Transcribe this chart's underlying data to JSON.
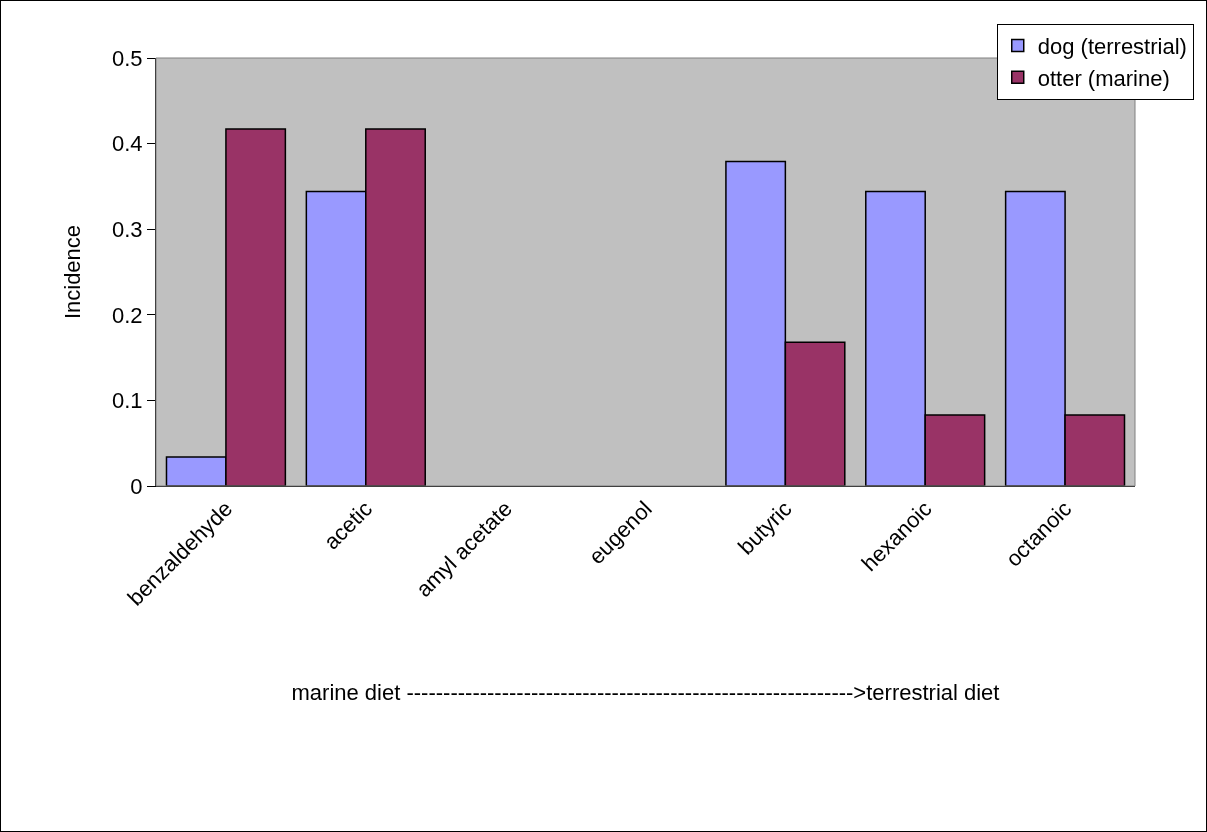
{
  "chart_data": {
    "type": "bar",
    "xlabel": "marine diet ------------------------------------------------------------->terrestrial diet",
    "ylabel": "Incidence",
    "categories": [
      "benzaldehyde",
      "acetic",
      "amyl acetate",
      "eugenol",
      "butyric",
      "hexanoic",
      "octanoic"
    ],
    "series": [
      {
        "name": "dog (terrestrial)",
        "color": "#9999ff",
        "values": [
          0.034,
          0.344,
          null,
          null,
          0.379,
          0.344,
          0.344
        ]
      },
      {
        "name": "otter (marine)",
        "color": "#993366",
        "values": [
          0.417,
          0.417,
          null,
          null,
          0.168,
          0.083,
          0.083
        ]
      }
    ],
    "ylim": [
      0,
      0.5
    ],
    "yticks": [
      0,
      0.1,
      0.2,
      0.3,
      0.4,
      0.5
    ],
    "grid": false,
    "legend": "top right"
  }
}
